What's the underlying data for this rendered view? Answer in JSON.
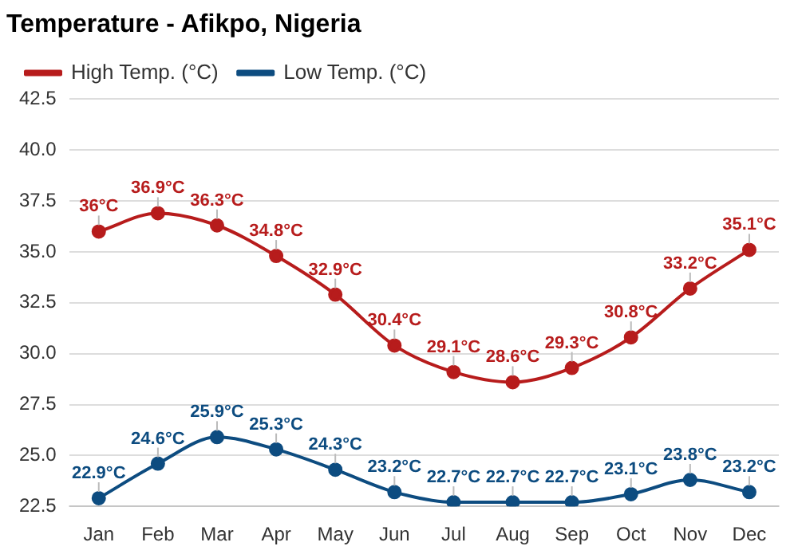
{
  "chart_data": {
    "type": "line",
    "title": "Temperature - Afikpo, Nigeria",
    "categories": [
      "Jan",
      "Feb",
      "Mar",
      "Apr",
      "May",
      "Jun",
      "Jul",
      "Aug",
      "Sep",
      "Oct",
      "Nov",
      "Dec"
    ],
    "series": [
      {
        "name": "High Temp. (°C)",
        "color": "#b71c1c",
        "values": [
          36,
          36.9,
          36.3,
          34.8,
          32.9,
          30.4,
          29.1,
          28.6,
          29.3,
          30.8,
          33.2,
          35.1
        ],
        "value_labels": [
          "36°C",
          "36.9°C",
          "36.3°C",
          "34.8°C",
          "32.9°C",
          "30.4°C",
          "29.1°C",
          "28.6°C",
          "29.3°C",
          "30.8°C",
          "33.2°C",
          "35.1°C"
        ]
      },
      {
        "name": "Low Temp. (°C)",
        "color": "#0d4c80",
        "values": [
          22.9,
          24.6,
          25.9,
          25.3,
          24.3,
          23.2,
          22.7,
          22.7,
          22.7,
          23.1,
          23.8,
          23.2
        ],
        "value_labels": [
          "22.9°C",
          "24.6°C",
          "25.9°C",
          "25.3°C",
          "24.3°C",
          "23.2°C",
          "22.7°C",
          "22.7°C",
          "22.7°C",
          "23.1°C",
          "23.8°C",
          "23.2°C"
        ]
      }
    ],
    "ylim": [
      22.5,
      42.5
    ],
    "yticks": [
      22.5,
      {
        "value": 25,
        "label": "25.0"
      },
      27.5,
      {
        "value": 30,
        "label": "30.0"
      },
      32.5,
      {
        "value": 35,
        "label": "35.0"
      },
      37.5,
      {
        "value": 40,
        "label": "40.0"
      },
      42.5
    ],
    "grid": "y",
    "legend": "top left",
    "marker": "circle",
    "line_style": "solid"
  }
}
